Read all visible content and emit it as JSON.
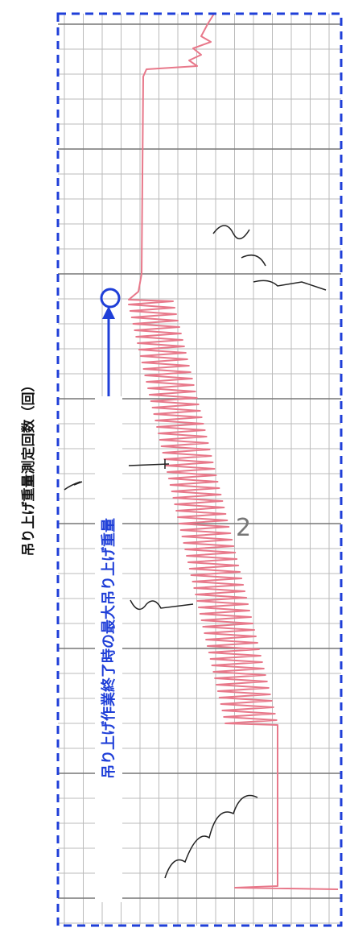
{
  "axis_label": "吊り上げ重量測定回数（回）",
  "annotation": "吊り上げ作業終了時の最大吊り上げ重量",
  "grid_number": "2"
}
